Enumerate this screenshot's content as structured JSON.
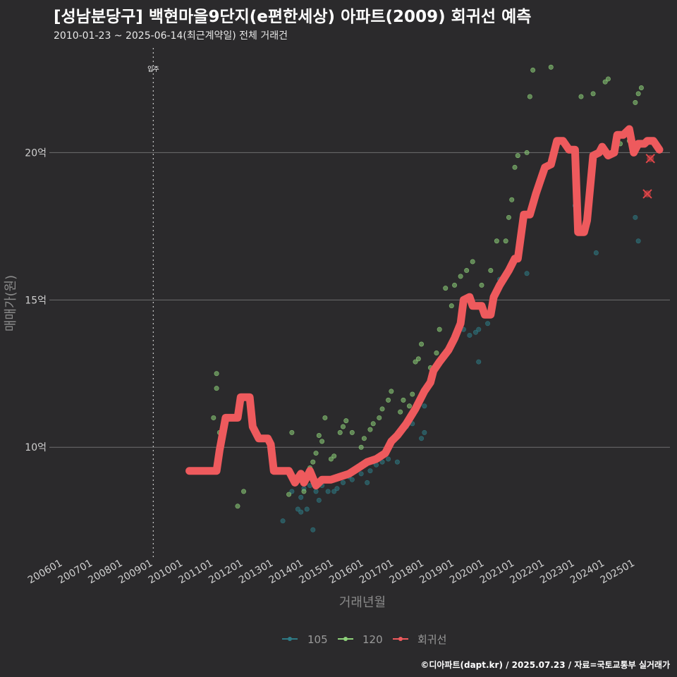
{
  "header": {
    "title": "[성남분당구] 백현마을9단지(e편한세상) 아파트(2009) 회귀선 예측",
    "subtitle": "2010-01-23 ~ 2025-06-14(최근계약일) 전체 거래건"
  },
  "caption": "©디아파트(dapt.kr) / 2025.07.23 / 자료=국토교통부 실거래가",
  "chart_data": {
    "type": "scatter",
    "xlabel": "거래년월",
    "ylabel": "매매가(원)",
    "x_range": [
      2005.55,
      2026.15
    ],
    "ylim": [
      6.2,
      23.6
    ],
    "y_ticks": [
      10,
      15,
      20
    ],
    "y_tick_labels": [
      "10억",
      "15억",
      "20억"
    ],
    "x_tick_values": [
      2006,
      2007,
      2008,
      2009,
      2010,
      2011,
      2012,
      2013,
      2014,
      2015,
      2016,
      2017,
      2018,
      2019,
      2020,
      2021,
      2022,
      2023,
      2024,
      2025
    ],
    "x_tick_labels": [
      "200601",
      "200701",
      "200801",
      "200901",
      "201001",
      "201101",
      "201201",
      "201301",
      "201401",
      "201501",
      "201601",
      "201701",
      "201801",
      "201901",
      "202001",
      "202101",
      "202201",
      "202301",
      "202401",
      "202501"
    ],
    "annotation": {
      "label": "입주",
      "x": 2009.0
    },
    "legend": [
      {
        "name": "105",
        "color": "#2e7b86"
      },
      {
        "name": "120",
        "color": "#8ed27a"
      },
      {
        "name": "회귀선",
        "color": "#ee5a5d"
      }
    ],
    "series": [
      {
        "name": "105",
        "points": [
          [
            2013.3,
            7.5
          ],
          [
            2013.6,
            8.5
          ],
          [
            2013.8,
            7.9
          ],
          [
            2013.9,
            7.8
          ],
          [
            2013.9,
            8.3
          ],
          [
            2014.0,
            8.6
          ],
          [
            2014.1,
            7.9
          ],
          [
            2014.2,
            8.7
          ],
          [
            2014.3,
            7.2
          ],
          [
            2014.4,
            8.5
          ],
          [
            2014.5,
            8.2
          ],
          [
            2014.6,
            8.7
          ],
          [
            2014.8,
            8.5
          ],
          [
            2015.0,
            8.5
          ],
          [
            2015.1,
            8.6
          ],
          [
            2015.3,
            8.8
          ],
          [
            2015.5,
            9.0
          ],
          [
            2015.6,
            8.9
          ],
          [
            2015.9,
            9.1
          ],
          [
            2016.1,
            8.8
          ],
          [
            2016.2,
            9.2
          ],
          [
            2016.3,
            9.5
          ],
          [
            2016.4,
            9.4
          ],
          [
            2016.6,
            9.5
          ],
          [
            2016.8,
            9.6
          ],
          [
            2017.1,
            9.5
          ],
          [
            2017.4,
            10.7
          ],
          [
            2017.6,
            10.8
          ],
          [
            2017.9,
            10.3
          ],
          [
            2018.0,
            10.5
          ],
          [
            2018.0,
            11.4
          ],
          [
            2019.3,
            14.0
          ],
          [
            2019.5,
            13.8
          ],
          [
            2019.7,
            13.9
          ],
          [
            2019.8,
            12.9
          ],
          [
            2019.8,
            14.0
          ],
          [
            2020.1,
            14.2
          ],
          [
            2020.5,
            15.7
          ],
          [
            2021.2,
            17.2
          ],
          [
            2021.4,
            15.9
          ],
          [
            2023.0,
            18.2
          ],
          [
            2023.7,
            16.6
          ],
          [
            2025.0,
            17.8
          ],
          [
            2025.1,
            17.0
          ]
        ]
      },
      {
        "name": "120",
        "points": [
          [
            2011.0,
            11.0
          ],
          [
            2011.1,
            12.5
          ],
          [
            2011.1,
            12.0
          ],
          [
            2011.2,
            10.5
          ],
          [
            2011.8,
            8.0
          ],
          [
            2012.0,
            8.5
          ],
          [
            2012.3,
            10.8
          ],
          [
            2013.2,
            9.2
          ],
          [
            2013.5,
            8.4
          ],
          [
            2013.6,
            10.5
          ],
          [
            2014.0,
            8.5
          ],
          [
            2014.1,
            9.0
          ],
          [
            2014.2,
            9.3
          ],
          [
            2014.3,
            9.5
          ],
          [
            2014.4,
            9.8
          ],
          [
            2014.5,
            10.4
          ],
          [
            2014.6,
            10.2
          ],
          [
            2014.7,
            11.0
          ],
          [
            2014.9,
            9.6
          ],
          [
            2015.0,
            9.7
          ],
          [
            2015.2,
            10.5
          ],
          [
            2015.3,
            10.7
          ],
          [
            2015.4,
            10.9
          ],
          [
            2015.6,
            10.5
          ],
          [
            2015.9,
            10.0
          ],
          [
            2016.0,
            10.3
          ],
          [
            2016.2,
            10.6
          ],
          [
            2016.3,
            10.8
          ],
          [
            2016.5,
            11.0
          ],
          [
            2016.6,
            11.3
          ],
          [
            2016.8,
            11.6
          ],
          [
            2016.9,
            11.9
          ],
          [
            2017.2,
            11.2
          ],
          [
            2017.3,
            11.6
          ],
          [
            2017.5,
            11.4
          ],
          [
            2017.6,
            11.8
          ],
          [
            2017.7,
            12.9
          ],
          [
            2017.8,
            13.0
          ],
          [
            2017.9,
            13.5
          ],
          [
            2018.2,
            12.7
          ],
          [
            2018.4,
            13.2
          ],
          [
            2018.5,
            14.0
          ],
          [
            2018.7,
            15.4
          ],
          [
            2018.9,
            14.8
          ],
          [
            2019.0,
            15.5
          ],
          [
            2019.2,
            15.8
          ],
          [
            2019.4,
            16.0
          ],
          [
            2019.6,
            16.3
          ],
          [
            2019.9,
            15.5
          ],
          [
            2020.2,
            16.0
          ],
          [
            2020.4,
            17.0
          ],
          [
            2020.7,
            17.0
          ],
          [
            2020.8,
            17.8
          ],
          [
            2020.9,
            18.4
          ],
          [
            2021.0,
            19.5
          ],
          [
            2021.1,
            19.9
          ],
          [
            2021.4,
            20.0
          ],
          [
            2021.5,
            21.9
          ],
          [
            2021.6,
            22.8
          ],
          [
            2022.2,
            22.9
          ],
          [
            2023.2,
            21.9
          ],
          [
            2023.6,
            22.0
          ],
          [
            2024.0,
            22.4
          ],
          [
            2024.1,
            22.5
          ],
          [
            2024.5,
            20.3
          ],
          [
            2024.8,
            20.4
          ],
          [
            2025.0,
            21.7
          ],
          [
            2025.1,
            22.0
          ],
          [
            2025.2,
            22.2
          ]
        ]
      }
    ],
    "regression": [
      [
        2010.2,
        9.2
      ],
      [
        2011.1,
        9.2
      ],
      [
        2011.2,
        9.9
      ],
      [
        2011.4,
        11.0
      ],
      [
        2011.8,
        11.0
      ],
      [
        2011.9,
        11.7
      ],
      [
        2012.2,
        11.7
      ],
      [
        2012.3,
        10.7
      ],
      [
        2012.5,
        10.3
      ],
      [
        2012.8,
        10.3
      ],
      [
        2012.9,
        10.1
      ],
      [
        2013.0,
        9.2
      ],
      [
        2013.5,
        9.2
      ],
      [
        2013.7,
        8.8
      ],
      [
        2013.9,
        9.1
      ],
      [
        2014.0,
        8.8
      ],
      [
        2014.2,
        9.2
      ],
      [
        2014.4,
        8.7
      ],
      [
        2014.6,
        8.9
      ],
      [
        2014.9,
        8.9
      ],
      [
        2015.2,
        9.0
      ],
      [
        2015.5,
        9.1
      ],
      [
        2015.8,
        9.3
      ],
      [
        2016.1,
        9.5
      ],
      [
        2016.4,
        9.6
      ],
      [
        2016.7,
        9.8
      ],
      [
        2016.9,
        10.2
      ],
      [
        2017.1,
        10.4
      ],
      [
        2017.4,
        10.8
      ],
      [
        2017.7,
        11.3
      ],
      [
        2018.0,
        11.9
      ],
      [
        2018.2,
        12.2
      ],
      [
        2018.3,
        12.6
      ],
      [
        2018.5,
        12.9
      ],
      [
        2018.8,
        13.3
      ],
      [
        2019.0,
        13.7
      ],
      [
        2019.2,
        14.2
      ],
      [
        2019.3,
        15.0
      ],
      [
        2019.5,
        15.1
      ],
      [
        2019.6,
        14.8
      ],
      [
        2019.9,
        14.8
      ],
      [
        2020.0,
        14.5
      ],
      [
        2020.2,
        14.5
      ],
      [
        2020.3,
        15.1
      ],
      [
        2020.5,
        15.5
      ],
      [
        2020.8,
        16.0
      ],
      [
        2021.0,
        16.4
      ],
      [
        2021.1,
        16.4
      ],
      [
        2021.3,
        17.9
      ],
      [
        2021.5,
        17.9
      ],
      [
        2021.7,
        18.6
      ],
      [
        2021.9,
        19.2
      ],
      [
        2022.0,
        19.5
      ],
      [
        2022.2,
        19.6
      ],
      [
        2022.4,
        20.4
      ],
      [
        2022.6,
        20.4
      ],
      [
        2022.8,
        20.1
      ],
      [
        2023.0,
        20.1
      ],
      [
        2023.1,
        17.3
      ],
      [
        2023.3,
        17.3
      ],
      [
        2023.4,
        17.7
      ],
      [
        2023.6,
        19.9
      ],
      [
        2023.8,
        20.0
      ],
      [
        2023.9,
        20.2
      ],
      [
        2024.1,
        19.9
      ],
      [
        2024.3,
        20.0
      ],
      [
        2024.4,
        20.6
      ],
      [
        2024.6,
        20.6
      ],
      [
        2024.8,
        20.8
      ],
      [
        2024.95,
        20.0
      ],
      [
        2025.1,
        20.3
      ],
      [
        2025.3,
        20.3
      ],
      [
        2025.4,
        20.4
      ],
      [
        2025.6,
        20.4
      ],
      [
        2025.8,
        20.1
      ]
    ],
    "predicted_points": [
      [
        2025.5,
        19.8
      ],
      [
        2025.4,
        18.6
      ]
    ]
  }
}
